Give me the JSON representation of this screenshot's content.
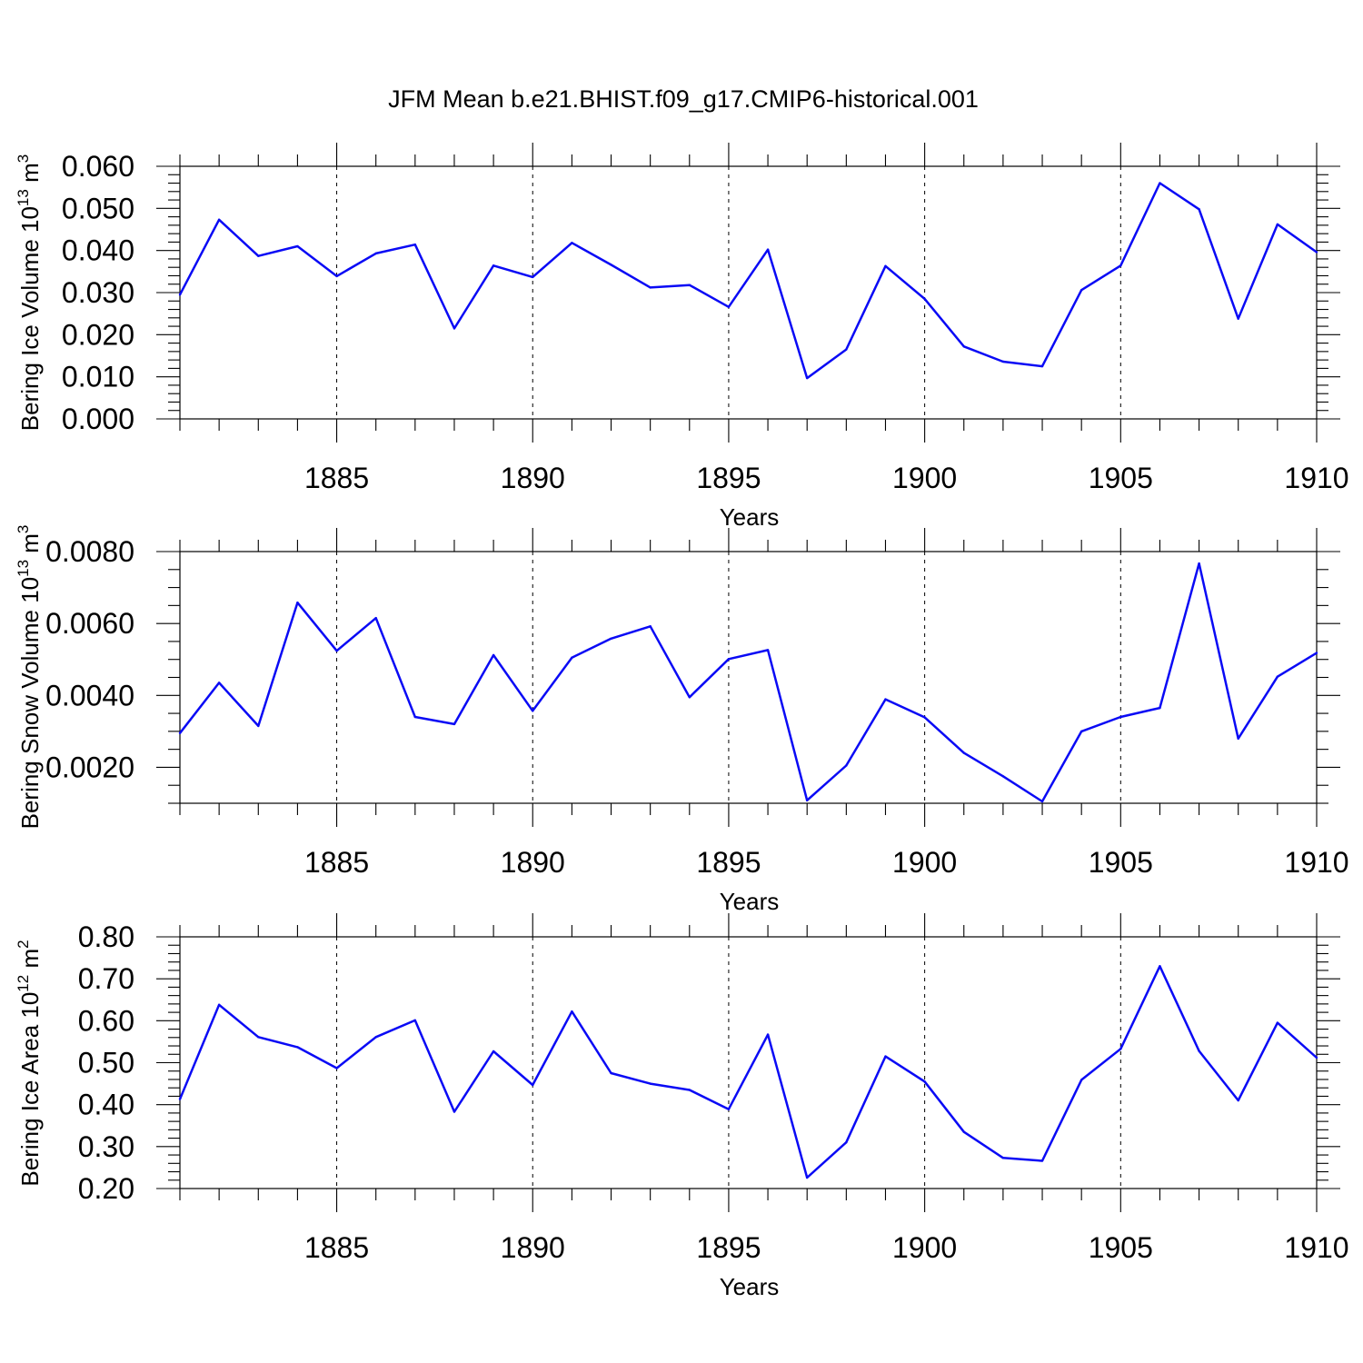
{
  "title": "JFM Mean b.e21.BHIST.f09_g17.CMIP6-historical.001",
  "series_color": "#0a0af5",
  "chart_data": [
    {
      "type": "line",
      "title": "JFM Mean b.e21.BHIST.f09_g17.CMIP6-historical.001",
      "xlabel": "Years",
      "ylabel": "Bering Ice Volume 10",
      "ylabel_exp": "13",
      "ylabel_unit": "m",
      "ylabel_unit_exp": "3",
      "xlim": [
        1881,
        1910
      ],
      "ylim": [
        0.0,
        0.06
      ],
      "grid": "vertical dashed at major x ticks",
      "x_major_ticks": [
        1885,
        1890,
        1895,
        1900,
        1905,
        1910
      ],
      "x_tick_labels": [
        "1885",
        "1890",
        "1895",
        "1900",
        "1905",
        "1910"
      ],
      "y_major_ticks": [
        0.0,
        0.01,
        0.02,
        0.03,
        0.04,
        0.05,
        0.06
      ],
      "y_tick_labels": [
        "0.000",
        "0.010",
        "0.020",
        "0.030",
        "0.040",
        "0.050",
        "0.060"
      ],
      "y_minor_step": 0.002,
      "x": [
        1881,
        1882,
        1883,
        1884,
        1885,
        1886,
        1887,
        1888,
        1889,
        1890,
        1891,
        1892,
        1893,
        1894,
        1895,
        1896,
        1897,
        1898,
        1899,
        1900,
        1901,
        1902,
        1903,
        1904,
        1905,
        1906,
        1907,
        1908,
        1909,
        1910
      ],
      "values": [
        0.0295,
        0.0473,
        0.0387,
        0.041,
        0.0339,
        0.0393,
        0.0414,
        0.0215,
        0.0364,
        0.0337,
        0.0418,
        0.0366,
        0.0312,
        0.0318,
        0.0266,
        0.0402,
        0.0097,
        0.0165,
        0.0363,
        0.0285,
        0.0172,
        0.0136,
        0.0125,
        0.0306,
        0.0364,
        0.056,
        0.0498,
        0.0238,
        0.0462,
        0.0396
      ]
    },
    {
      "type": "line",
      "xlabel": "Years",
      "ylabel": "Bering Snow Volume 10",
      "ylabel_exp": "13",
      "ylabel_unit": "m",
      "ylabel_unit_exp": "3",
      "xlim": [
        1881,
        1910
      ],
      "ylim": [
        0.001,
        0.008
      ],
      "grid": "vertical dashed at major x ticks",
      "x_major_ticks": [
        1885,
        1890,
        1895,
        1900,
        1905,
        1910
      ],
      "x_tick_labels": [
        "1885",
        "1890",
        "1895",
        "1900",
        "1905",
        "1910"
      ],
      "y_major_ticks": [
        0.002,
        0.004,
        0.006,
        0.008
      ],
      "y_tick_labels": [
        "0.0020",
        "0.0040",
        "0.0060",
        "0.0080"
      ],
      "y_minor_step": 0.0005,
      "x": [
        1881,
        1882,
        1883,
        1884,
        1885,
        1886,
        1887,
        1888,
        1889,
        1890,
        1891,
        1892,
        1893,
        1894,
        1895,
        1896,
        1897,
        1898,
        1899,
        1900,
        1901,
        1902,
        1903,
        1904,
        1905,
        1906,
        1907,
        1908,
        1909,
        1910
      ],
      "values": [
        0.00295,
        0.00435,
        0.00315,
        0.00658,
        0.00524,
        0.00615,
        0.0034,
        0.0032,
        0.00512,
        0.00357,
        0.00505,
        0.00558,
        0.00592,
        0.00395,
        0.00501,
        0.00526,
        0.00108,
        0.00205,
        0.00389,
        0.00339,
        0.0024,
        0.00175,
        0.00105,
        0.003,
        0.0034,
        0.00365,
        0.00767,
        0.0028,
        0.00452,
        0.00518
      ]
    },
    {
      "type": "line",
      "xlabel": "Years",
      "ylabel": "Bering Ice Area 10",
      "ylabel_exp": "12",
      "ylabel_unit": "m",
      "ylabel_unit_exp": "2",
      "xlim": [
        1881,
        1910
      ],
      "ylim": [
        0.2,
        0.8
      ],
      "grid": "vertical dashed at major x ticks",
      "x_major_ticks": [
        1885,
        1890,
        1895,
        1900,
        1905,
        1910
      ],
      "x_tick_labels": [
        "1885",
        "1890",
        "1895",
        "1900",
        "1905",
        "1910"
      ],
      "y_major_ticks": [
        0.2,
        0.3,
        0.4,
        0.5,
        0.6,
        0.7,
        0.8
      ],
      "y_tick_labels": [
        "0.20",
        "0.30",
        "0.40",
        "0.50",
        "0.60",
        "0.70",
        "0.80"
      ],
      "y_minor_step": 0.02,
      "x": [
        1881,
        1882,
        1883,
        1884,
        1885,
        1886,
        1887,
        1888,
        1889,
        1890,
        1891,
        1892,
        1893,
        1894,
        1895,
        1896,
        1897,
        1898,
        1899,
        1900,
        1901,
        1902,
        1903,
        1904,
        1905,
        1906,
        1907,
        1908,
        1909,
        1910
      ],
      "values": [
        0.413,
        0.638,
        0.561,
        0.537,
        0.487,
        0.561,
        0.601,
        0.383,
        0.527,
        0.447,
        0.622,
        0.475,
        0.45,
        0.435,
        0.389,
        0.567,
        0.226,
        0.31,
        0.515,
        0.455,
        0.335,
        0.273,
        0.266,
        0.459,
        0.533,
        0.73,
        0.528,
        0.41,
        0.595,
        0.512
      ]
    }
  ]
}
